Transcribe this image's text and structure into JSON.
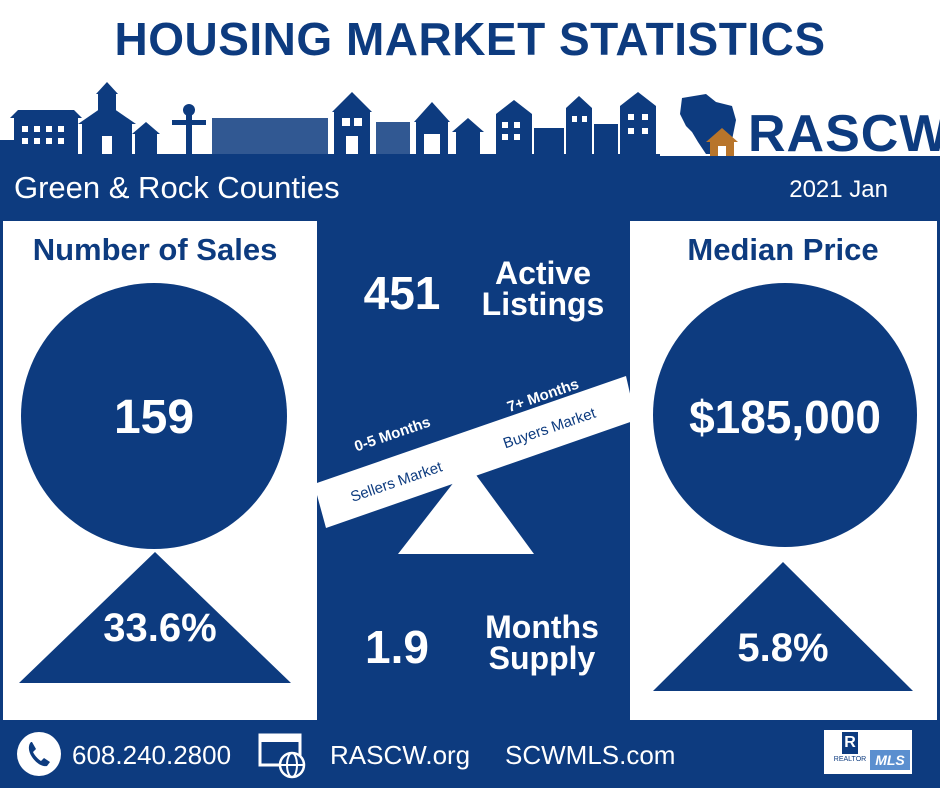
{
  "header": {
    "title": "HOUSING MARKET STATISTICS",
    "logo": "RASCW",
    "region": "Green & Rock Counties",
    "period": "2021 Jan"
  },
  "sales": {
    "heading": "Number of Sales",
    "value": "159",
    "change": "33.6%",
    "direction": "up"
  },
  "listings": {
    "value": "451",
    "label_line1": "Active",
    "label_line2": "Listings"
  },
  "scale": {
    "left_months": "0-5 Months",
    "left_market": "Sellers Market",
    "right_months": "7+ Months",
    "right_market": "Buyers Market"
  },
  "supply": {
    "value": "1.9",
    "label_line1": "Months",
    "label_line2": "Supply"
  },
  "price": {
    "heading": "Median Price",
    "value": "$185,000",
    "change": "5.8%",
    "direction": "up"
  },
  "footer": {
    "phone": "608.240.2800",
    "site1": "RASCW.org",
    "site2": "SCWMLS.com",
    "badge_r": "R",
    "badge_realtor": "REALTOR",
    "badge_mls": "MLS"
  },
  "colors": {
    "primary": "#0d3b7f",
    "house": "#b8752b",
    "white": "#ffffff"
  }
}
